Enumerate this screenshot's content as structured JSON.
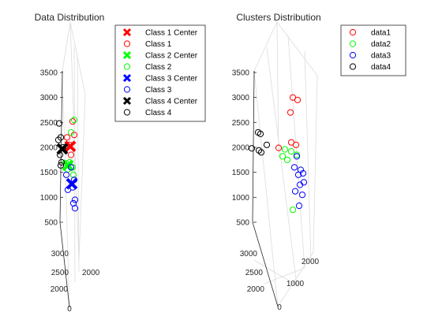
{
  "chart_data": [
    {
      "type": "scatter3d",
      "title": "Data Distribution",
      "xlabel": "",
      "ylabel": "",
      "zlabel": "",
      "x_ticks": [
        "0",
        "2000"
      ],
      "y_ticks": [
        "2000",
        "2500",
        "3000"
      ],
      "z_ticks": [
        "500",
        "1000",
        "1500",
        "2000",
        "2500",
        "3000",
        "3500"
      ],
      "zlim": [
        300,
        3600
      ],
      "grid": true,
      "legend_position": "top-right",
      "legend": [
        {
          "label": "Class 1 Center",
          "marker": "x",
          "color": "#ff0000"
        },
        {
          "label": "Class 1",
          "marker": "o",
          "color": "#ff0000"
        },
        {
          "label": "Class 2 Center",
          "marker": "x",
          "color": "#00ff00"
        },
        {
          "label": "Class 2",
          "marker": "o",
          "color": "#00ff00"
        },
        {
          "label": "Class 3 Center",
          "marker": "x",
          "color": "#0000ff"
        },
        {
          "label": "Class 3",
          "marker": "o",
          "color": "#0000ff"
        },
        {
          "label": "Class 4 Center",
          "marker": "x",
          "color": "#000000"
        },
        {
          "label": "Class 4",
          "marker": "o",
          "color": "#000000"
        }
      ],
      "series": [
        {
          "name": "Class 1 Center",
          "marker": "x",
          "color": "#ff0000",
          "z": [
            2020
          ]
        },
        {
          "name": "Class 1",
          "marker": "o",
          "color": "#ff0000",
          "z": [
            2520,
            2250,
            2200,
            2050,
            1850
          ]
        },
        {
          "name": "Class 2 Center",
          "marker": "x",
          "color": "#00ff00",
          "z": [
            1640
          ]
        },
        {
          "name": "Class 2",
          "marker": "o",
          "color": "#00ff00",
          "z": [
            2550,
            2300,
            1700,
            1680,
            1600,
            1560,
            1450
          ]
        },
        {
          "name": "Class 3 Center",
          "marker": "x",
          "color": "#0000ff",
          "z": [
            1270
          ]
        },
        {
          "name": "Class 3",
          "marker": "o",
          "color": "#0000ff",
          "z": [
            1600,
            1450,
            1350,
            1200,
            1150,
            950,
            880,
            780
          ]
        },
        {
          "name": "Class 4 Center",
          "marker": "x",
          "color": "#000000",
          "z": [
            1970
          ]
        },
        {
          "name": "Class 4",
          "marker": "o",
          "color": "#000000",
          "z": [
            2480,
            2200,
            2150,
            2000,
            1850,
            1700,
            1640
          ]
        }
      ]
    },
    {
      "type": "scatter3d",
      "title": "Clusters Distribution",
      "xlabel": "",
      "ylabel": "",
      "zlabel": "",
      "x_ticks": [
        "0",
        "1000",
        "2000"
      ],
      "y_ticks": [
        "2000",
        "2500",
        "3000"
      ],
      "z_ticks": [
        "500",
        "1000",
        "1500",
        "2000",
        "2500",
        "3000",
        "3500"
      ],
      "zlim": [
        300,
        3600
      ],
      "grid": true,
      "legend_position": "top-right",
      "legend": [
        {
          "label": "data1",
          "marker": "o",
          "color": "#ff0000"
        },
        {
          "label": "data2",
          "marker": "o",
          "color": "#00ff00"
        },
        {
          "label": "data3",
          "marker": "o",
          "color": "#0000ff"
        },
        {
          "label": "data4",
          "marker": "o",
          "color": "#000000"
        }
      ],
      "series": [
        {
          "name": "data1",
          "marker": "o",
          "color": "#ff0000",
          "z": [
            3000,
            2950,
            2700,
            2100,
            2050,
            1990
          ]
        },
        {
          "name": "data2",
          "marker": "o",
          "color": "#00ff00",
          "z": [
            1960,
            1920,
            1850,
            1820,
            1750,
            750
          ]
        },
        {
          "name": "data3",
          "marker": "o",
          "color": "#0000ff",
          "z": [
            1820,
            1600,
            1550,
            1480,
            1450,
            1300,
            1250,
            1120,
            1050,
            830
          ]
        },
        {
          "name": "data4",
          "marker": "o",
          "color": "#000000",
          "z": [
            2300,
            2270,
            2050,
            1980,
            1940,
            1900
          ]
        }
      ]
    }
  ]
}
